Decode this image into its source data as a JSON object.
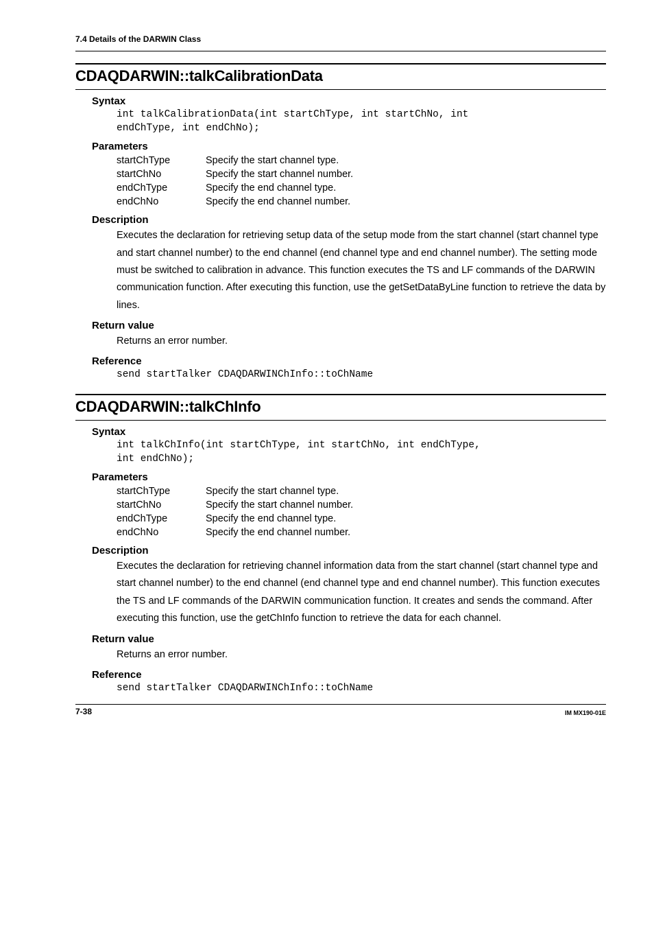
{
  "page": {
    "section_header": "7.4  Details of the DARWIN Class",
    "footer_left": "7-38",
    "footer_right": "IM MX190-01E"
  },
  "func1": {
    "title": "CDAQDARWIN::talkCalibrationData",
    "syntax_label": "Syntax",
    "syntax_code": "int talkCalibrationData(int startChType, int startChNo, int\nendChType, int endChNo);",
    "params_label": "Parameters",
    "params": [
      {
        "name": "startChType",
        "desc": "Specify the start channel type."
      },
      {
        "name": "startChNo",
        "desc": "Specify the start channel number."
      },
      {
        "name": "endChType",
        "desc": "Specify the end channel type."
      },
      {
        "name": "endChNo",
        "desc": "Specify the end channel number."
      }
    ],
    "desc_label": "Description",
    "desc_text": "Executes the declaration for retrieving setup data of the setup mode from the start channel (start channel type and start channel number) to the end channel (end channel type and end channel number).  The setting mode must be switched to calibration in advance.  This function executes the TS and LF commands of the DARWIN communication function.  After executing this function, use the getSetDataByLine function to retrieve the data by lines.",
    "ret_label": "Return value",
    "ret_text": "Returns an error number.",
    "ref_label": "Reference",
    "ref_code": "send startTalker CDAQDARWINChInfo::toChName"
  },
  "func2": {
    "title": "CDAQDARWIN::talkChInfo",
    "syntax_label": "Syntax",
    "syntax_code": "int talkChInfo(int startChType, int startChNo, int endChType,\nint endChNo);",
    "params_label": "Parameters",
    "params": [
      {
        "name": "startChType",
        "desc": "Specify the start channel type."
      },
      {
        "name": "startChNo",
        "desc": "Specify the start channel number."
      },
      {
        "name": "endChType",
        "desc": "Specify the end channel type."
      },
      {
        "name": "endChNo",
        "desc": "Specify the end channel number."
      }
    ],
    "desc_label": "Description",
    "desc_text": "Executes the declaration for retrieving channel information data from the start channel (start channel type and start channel number) to the end channel (end channel type and end channel number).  This function executes the TS and LF commands of the DARWIN communication function.  It creates and sends the command.  After executing this function, use the getChInfo function to retrieve the data for each channel.",
    "ret_label": "Return value",
    "ret_text": "Returns an error number.",
    "ref_label": "Reference",
    "ref_code": "send startTalker CDAQDARWINChInfo::toChName"
  }
}
